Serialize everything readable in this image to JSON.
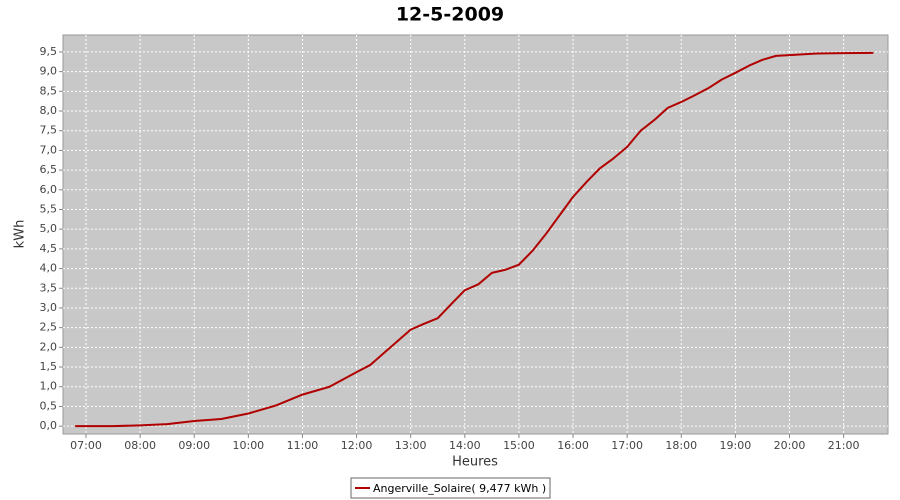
{
  "chart_data": {
    "type": "line",
    "title": "12-5-2009",
    "x_label": "Heures",
    "y_label": "kWh",
    "x": [
      6.8,
      7.5,
      8,
      8.5,
      9,
      9.5,
      10,
      10.5,
      11,
      11.5,
      12,
      12.25,
      12.5,
      13,
      13.25,
      13.5,
      13.75,
      14,
      14.25,
      14.5,
      14.75,
      15,
      15.25,
      15.5,
      15.75,
      16,
      16.25,
      16.5,
      16.75,
      17,
      17.25,
      17.5,
      17.75,
      18,
      18.25,
      18.5,
      18.75,
      19,
      19.25,
      19.5,
      19.75,
      20,
      20.5,
      21,
      21.55
    ],
    "series": [
      {
        "name": "Angerville_Solaire( 9,477 kWh )",
        "color": "#b00000",
        "values": [
          0,
          0,
          0.02,
          0.05,
          0.13,
          0.18,
          0.32,
          0.52,
          0.8,
          1.0,
          1.37,
          1.55,
          1.85,
          2.45,
          2.6,
          2.74,
          3.1,
          3.45,
          3.6,
          3.89,
          3.97,
          4.1,
          4.45,
          4.88,
          5.35,
          5.82,
          6.2,
          6.55,
          6.8,
          7.09,
          7.5,
          7.77,
          8.08,
          8.23,
          8.4,
          8.58,
          8.8,
          8.97,
          9.15,
          9.3,
          9.4,
          9.42,
          9.46,
          9.47,
          9.477
        ]
      }
    ],
    "xlim": [
      6.575,
      21.82
    ],
    "ylim": [
      -0.2,
      9.93
    ],
    "xticks": [
      {
        "value": 7,
        "label": "07:00"
      },
      {
        "value": 8,
        "label": "08:00"
      },
      {
        "value": 9,
        "label": "09:00"
      },
      {
        "value": 10,
        "label": "10:00"
      },
      {
        "value": 11,
        "label": "11:00"
      },
      {
        "value": 12,
        "label": "12:00"
      },
      {
        "value": 13,
        "label": "13:00"
      },
      {
        "value": 14,
        "label": "14:00"
      },
      {
        "value": 15,
        "label": "15:00"
      },
      {
        "value": 16,
        "label": "16:00"
      },
      {
        "value": 17,
        "label": "17:00"
      },
      {
        "value": 18,
        "label": "18:00"
      },
      {
        "value": 19,
        "label": "19:00"
      },
      {
        "value": 20,
        "label": "20:00"
      },
      {
        "value": 21,
        "label": "21:00"
      }
    ],
    "yticks": [
      {
        "value": 0,
        "label": "0,0"
      },
      {
        "value": 0.5,
        "label": "0,5"
      },
      {
        "value": 1,
        "label": "1,0"
      },
      {
        "value": 1.5,
        "label": "1,5"
      },
      {
        "value": 2,
        "label": "2,0"
      },
      {
        "value": 2.5,
        "label": "2,5"
      },
      {
        "value": 3,
        "label": "3,0"
      },
      {
        "value": 3.5,
        "label": "3,5"
      },
      {
        "value": 4,
        "label": "4,0"
      },
      {
        "value": 4.5,
        "label": "4,5"
      },
      {
        "value": 5,
        "label": "5,0"
      },
      {
        "value": 5.5,
        "label": "5,5"
      },
      {
        "value": 6,
        "label": "6,0"
      },
      {
        "value": 6.5,
        "label": "6,5"
      },
      {
        "value": 7,
        "label": "7,0"
      },
      {
        "value": 7.5,
        "label": "7,5"
      },
      {
        "value": 8,
        "label": "8,0"
      },
      {
        "value": 8.5,
        "label": "8,5"
      },
      {
        "value": 9,
        "label": "9,0"
      },
      {
        "value": 9.5,
        "label": "9,5"
      }
    ],
    "grid": true
  }
}
